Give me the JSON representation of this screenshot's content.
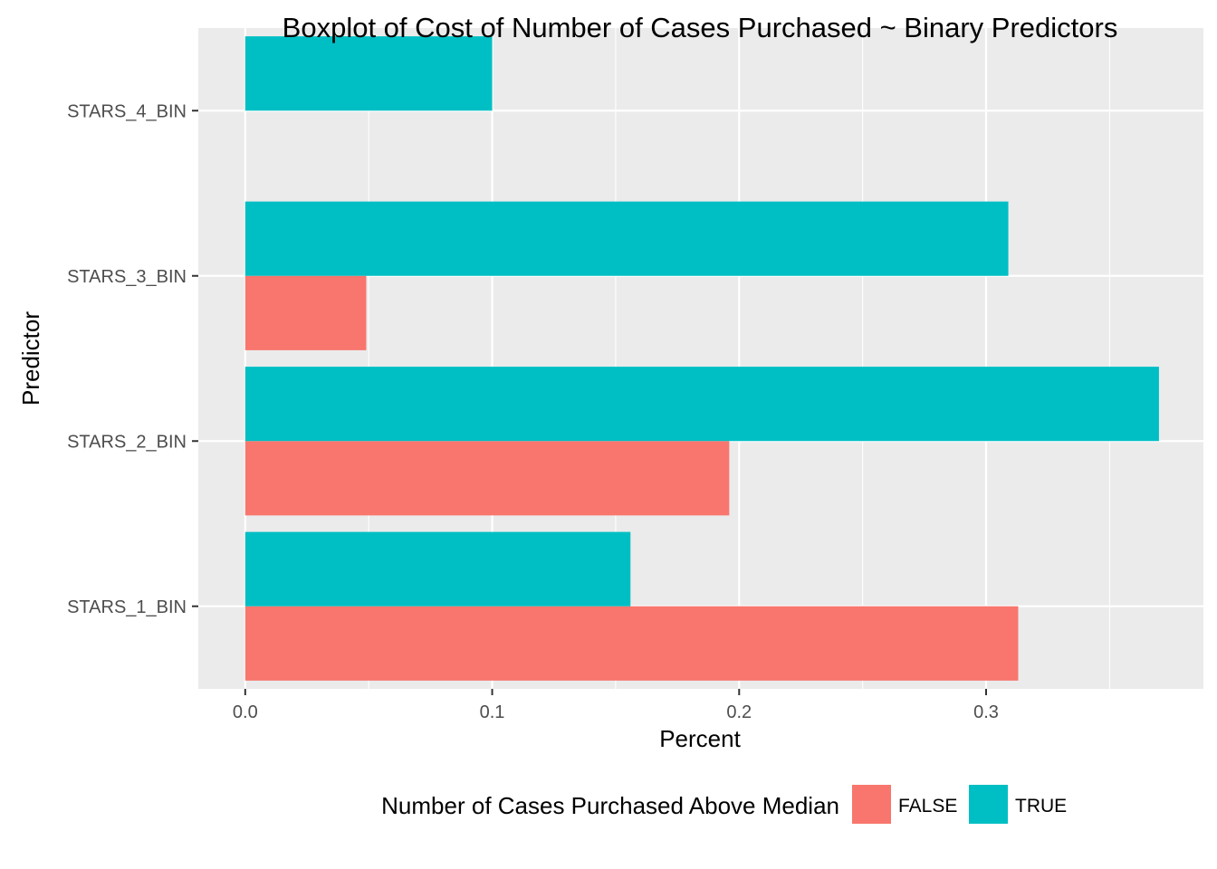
{
  "chart_data": {
    "type": "bar",
    "orientation": "horizontal",
    "title": "Boxplot of Cost of Number of Cases Purchased ~ Binary Predictors",
    "xlabel": "Percent",
    "ylabel": "Predictor",
    "categories": [
      "STARS_1_BIN",
      "STARS_2_BIN",
      "STARS_3_BIN",
      "STARS_4_BIN"
    ],
    "x_ticks": [
      "0.0",
      "0.1",
      "0.2",
      "0.3"
    ],
    "xlim": [
      -0.019,
      0.388
    ],
    "grid": true,
    "legend": {
      "title": "Number of Cases Purchased Above Median",
      "position": "bottom"
    },
    "series": [
      {
        "name": "FALSE",
        "color": "#F8766D",
        "values": [
          0.313,
          0.196,
          0.049,
          null
        ]
      },
      {
        "name": "TRUE",
        "color": "#00BFC4",
        "values": [
          0.156,
          0.37,
          0.309,
          0.1
        ]
      }
    ]
  }
}
